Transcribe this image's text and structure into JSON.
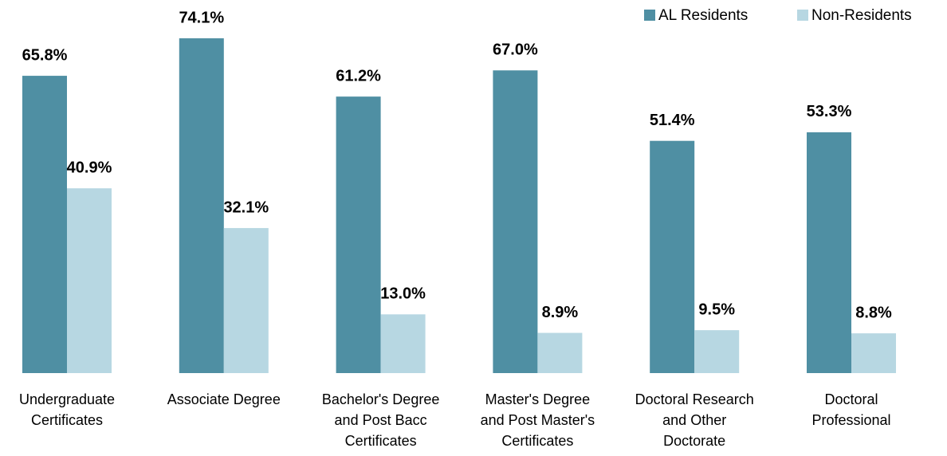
{
  "chart_data": {
    "type": "bar",
    "categories": [
      "Undergraduate\nCertificates",
      "Associate Degree",
      "Bachelor's Degree\nand Post Bacc\nCertificates",
      "Master's Degree\nand Post Master's\nCertificates",
      "Doctoral Research\nand Other\nDoctorate",
      "Doctoral\nProfessional"
    ],
    "series": [
      {
        "name": "AL Residents",
        "color": "#4f8fa3",
        "values": [
          65.8,
          74.1,
          61.2,
          67.0,
          51.4,
          53.3
        ],
        "value_labels": [
          "65.8%",
          "74.1%",
          "61.2%",
          "67.0%",
          "51.4%",
          "53.3%"
        ]
      },
      {
        "name": "Non-Residents",
        "color": "#b7d7e2",
        "values": [
          40.9,
          32.1,
          13.0,
          8.9,
          9.5,
          8.8
        ],
        "value_labels": [
          "40.9%",
          "32.1%",
          "13.0%",
          "8.9%",
          "9.5%",
          "8.8%"
        ]
      }
    ],
    "ylim": [
      0,
      80
    ],
    "legend": "top-right"
  }
}
